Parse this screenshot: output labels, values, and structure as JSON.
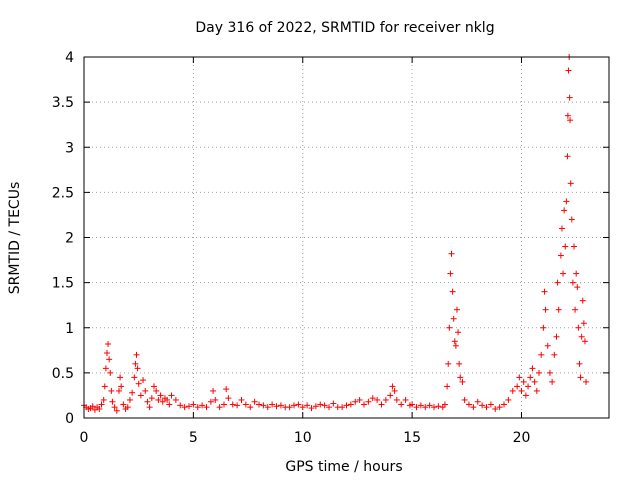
{
  "chart_data": {
    "type": "scatter",
    "title": "Day 316 of 2022, SRMTID for receiver nklg",
    "xlabel": "GPS time / hours",
    "ylabel": "SRMTID / TECUs",
    "xlim": [
      0,
      24
    ],
    "ylim": [
      0,
      4
    ],
    "xticks": [
      0,
      5,
      10,
      15,
      20
    ],
    "yticks": [
      0,
      0.5,
      1,
      1.5,
      2,
      2.5,
      3,
      3.5,
      4
    ],
    "grid": true,
    "marker": "+",
    "series": [
      {
        "name": "SRMTID",
        "color": "#ff0000",
        "points": [
          [
            0.0,
            0.14
          ],
          [
            0.1,
            0.12
          ],
          [
            0.2,
            0.1
          ],
          [
            0.3,
            0.11
          ],
          [
            0.4,
            0.13
          ],
          [
            0.5,
            0.09
          ],
          [
            0.6,
            0.12
          ],
          [
            0.7,
            0.1
          ],
          [
            0.8,
            0.15
          ],
          [
            0.9,
            0.2
          ],
          [
            0.95,
            0.35
          ],
          [
            1.0,
            0.55
          ],
          [
            1.05,
            0.72
          ],
          [
            1.1,
            0.82
          ],
          [
            1.15,
            0.65
          ],
          [
            1.2,
            0.5
          ],
          [
            1.25,
            0.3
          ],
          [
            1.3,
            0.18
          ],
          [
            1.4,
            0.12
          ],
          [
            1.5,
            0.08
          ],
          [
            1.6,
            0.3
          ],
          [
            1.65,
            0.45
          ],
          [
            1.7,
            0.35
          ],
          [
            1.8,
            0.15
          ],
          [
            1.9,
            0.1
          ],
          [
            2.0,
            0.12
          ],
          [
            2.1,
            0.2
          ],
          [
            2.2,
            0.28
          ],
          [
            2.3,
            0.45
          ],
          [
            2.35,
            0.6
          ],
          [
            2.4,
            0.7
          ],
          [
            2.45,
            0.55
          ],
          [
            2.5,
            0.38
          ],
          [
            2.6,
            0.25
          ],
          [
            2.7,
            0.42
          ],
          [
            2.8,
            0.3
          ],
          [
            2.9,
            0.18
          ],
          [
            3.0,
            0.12
          ],
          [
            3.1,
            0.22
          ],
          [
            3.2,
            0.35
          ],
          [
            3.3,
            0.3
          ],
          [
            3.4,
            0.2
          ],
          [
            3.5,
            0.25
          ],
          [
            3.6,
            0.18
          ],
          [
            3.7,
            0.22
          ],
          [
            3.8,
            0.2
          ],
          [
            3.9,
            0.15
          ],
          [
            4.0,
            0.25
          ],
          [
            4.2,
            0.2
          ],
          [
            4.4,
            0.14
          ],
          [
            4.6,
            0.12
          ],
          [
            4.8,
            0.13
          ],
          [
            5.0,
            0.15
          ],
          [
            5.2,
            0.12
          ],
          [
            5.4,
            0.14
          ],
          [
            5.6,
            0.12
          ],
          [
            5.8,
            0.18
          ],
          [
            5.9,
            0.3
          ],
          [
            6.0,
            0.2
          ],
          [
            6.2,
            0.12
          ],
          [
            6.4,
            0.15
          ],
          [
            6.5,
            0.32
          ],
          [
            6.6,
            0.22
          ],
          [
            6.8,
            0.15
          ],
          [
            7.0,
            0.14
          ],
          [
            7.2,
            0.2
          ],
          [
            7.4,
            0.15
          ],
          [
            7.6,
            0.12
          ],
          [
            7.8,
            0.18
          ],
          [
            8.0,
            0.15
          ],
          [
            8.2,
            0.14
          ],
          [
            8.4,
            0.12
          ],
          [
            8.6,
            0.15
          ],
          [
            8.8,
            0.13
          ],
          [
            9.0,
            0.14
          ],
          [
            9.2,
            0.12
          ],
          [
            9.4,
            0.12
          ],
          [
            9.6,
            0.14
          ],
          [
            9.8,
            0.15
          ],
          [
            10.0,
            0.12
          ],
          [
            10.2,
            0.14
          ],
          [
            10.4,
            0.11
          ],
          [
            10.6,
            0.13
          ],
          [
            10.8,
            0.15
          ],
          [
            11.0,
            0.14
          ],
          [
            11.2,
            0.12
          ],
          [
            11.4,
            0.16
          ],
          [
            11.6,
            0.12
          ],
          [
            11.8,
            0.12
          ],
          [
            12.0,
            0.14
          ],
          [
            12.2,
            0.15
          ],
          [
            12.4,
            0.18
          ],
          [
            12.6,
            0.2
          ],
          [
            12.8,
            0.15
          ],
          [
            13.0,
            0.18
          ],
          [
            13.2,
            0.22
          ],
          [
            13.4,
            0.2
          ],
          [
            13.6,
            0.15
          ],
          [
            13.8,
            0.2
          ],
          [
            14.0,
            0.25
          ],
          [
            14.1,
            0.35
          ],
          [
            14.2,
            0.3
          ],
          [
            14.3,
            0.2
          ],
          [
            14.5,
            0.15
          ],
          [
            14.7,
            0.2
          ],
          [
            14.9,
            0.14
          ],
          [
            15.0,
            0.15
          ],
          [
            15.2,
            0.12
          ],
          [
            15.4,
            0.14
          ],
          [
            15.6,
            0.12
          ],
          [
            15.8,
            0.14
          ],
          [
            16.0,
            0.12
          ],
          [
            16.2,
            0.13
          ],
          [
            16.4,
            0.12
          ],
          [
            16.5,
            0.15
          ],
          [
            16.6,
            0.35
          ],
          [
            16.65,
            0.6
          ],
          [
            16.7,
            1.0
          ],
          [
            16.75,
            1.6
          ],
          [
            16.8,
            1.82
          ],
          [
            16.85,
            1.4
          ],
          [
            16.9,
            1.1
          ],
          [
            16.95,
            0.85
          ],
          [
            17.0,
            0.8
          ],
          [
            17.05,
            1.2
          ],
          [
            17.1,
            0.95
          ],
          [
            17.15,
            0.6
          ],
          [
            17.2,
            0.45
          ],
          [
            17.3,
            0.4
          ],
          [
            17.4,
            0.2
          ],
          [
            17.6,
            0.15
          ],
          [
            17.8,
            0.12
          ],
          [
            18.0,
            0.18
          ],
          [
            18.2,
            0.14
          ],
          [
            18.4,
            0.12
          ],
          [
            18.6,
            0.15
          ],
          [
            18.8,
            0.1
          ],
          [
            19.0,
            0.12
          ],
          [
            19.2,
            0.15
          ],
          [
            19.4,
            0.2
          ],
          [
            19.6,
            0.3
          ],
          [
            19.8,
            0.35
          ],
          [
            19.9,
            0.45
          ],
          [
            20.0,
            0.3
          ],
          [
            20.1,
            0.4
          ],
          [
            20.2,
            0.25
          ],
          [
            20.3,
            0.35
          ],
          [
            20.4,
            0.45
          ],
          [
            20.5,
            0.55
          ],
          [
            20.6,
            0.4
          ],
          [
            20.7,
            0.3
          ],
          [
            20.8,
            0.5
          ],
          [
            20.9,
            0.7
          ],
          [
            21.0,
            1.0
          ],
          [
            21.05,
            1.4
          ],
          [
            21.1,
            1.2
          ],
          [
            21.2,
            0.8
          ],
          [
            21.3,
            0.5
          ],
          [
            21.4,
            0.4
          ],
          [
            21.5,
            0.7
          ],
          [
            21.6,
            0.9
          ],
          [
            21.65,
            1.5
          ],
          [
            21.7,
            1.2
          ],
          [
            21.8,
            1.8
          ],
          [
            21.85,
            2.1
          ],
          [
            21.9,
            1.6
          ],
          [
            21.95,
            2.3
          ],
          [
            22.0,
            1.9
          ],
          [
            22.05,
            2.4
          ],
          [
            22.1,
            2.9
          ],
          [
            22.12,
            3.35
          ],
          [
            22.15,
            3.85
          ],
          [
            22.18,
            4.0
          ],
          [
            22.2,
            3.55
          ],
          [
            22.22,
            3.3
          ],
          [
            22.25,
            2.6
          ],
          [
            22.3,
            2.2
          ],
          [
            22.35,
            1.5
          ],
          [
            22.4,
            1.9
          ],
          [
            22.45,
            1.2
          ],
          [
            22.5,
            1.6
          ],
          [
            22.55,
            1.45
          ],
          [
            22.6,
            1.0
          ],
          [
            22.65,
            0.6
          ],
          [
            22.7,
            0.45
          ],
          [
            22.75,
            0.9
          ],
          [
            22.8,
            1.3
          ],
          [
            22.85,
            1.05
          ],
          [
            22.9,
            0.85
          ],
          [
            22.95,
            0.4
          ]
        ]
      }
    ]
  }
}
